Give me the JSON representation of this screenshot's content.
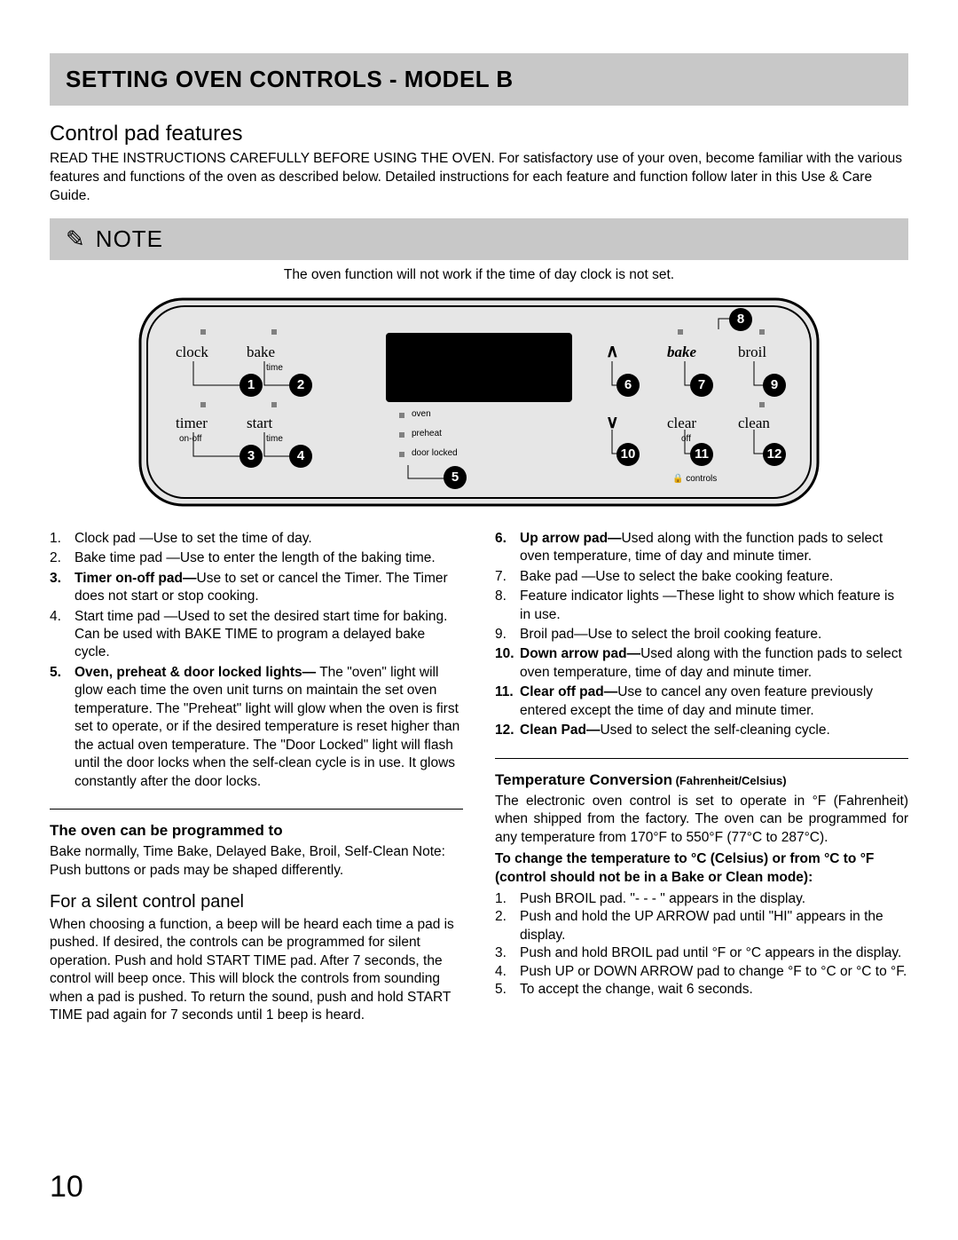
{
  "header": {
    "title": "SETTING OVEN CONTROLS - MODEL B"
  },
  "subhead": "Control pad features",
  "intro": "READ THE INSTRUCTIONS CAREFULLY BEFORE USING THE OVEN.  For satisfactory use of your oven, become familiar with the various features and functions of the oven as described below. Detailed instructions for each feature and function follow later in this Use & Care Guide.",
  "note": {
    "label": "NOTE",
    "text": "The oven function will not work if the time of day clock is not set."
  },
  "panel": {
    "labels": {
      "clock": "clock",
      "bake_top": "bake",
      "time_sub": "time",
      "timer": "timer",
      "start": "start",
      "onoff_sub": "on-off",
      "time_sub2": "time",
      "oven": "oven",
      "preheat": "preheat",
      "doorlocked": "door locked",
      "bake_bold": "bake",
      "broil": "broil",
      "clear": "clear",
      "clean": "clean",
      "off_sub": "off",
      "controls_sub": "controls"
    }
  },
  "features_left": [
    {
      "n": "1.",
      "bold": false,
      "text": "Clock pad —Use to set the time of day."
    },
    {
      "n": "2.",
      "bold": false,
      "text": "Bake time pad  —Use to enter the length of the baking time."
    },
    {
      "n": "3.",
      "bold": true,
      "lead": "Timer on-off pad—",
      "text": "Use to set or cancel the Timer. The Timer does not start or stop cooking."
    },
    {
      "n": "4.",
      "bold": false,
      "text": "Start time pad   —Used to set the desired start time for baking. Can be used with BAKE TIME to program a delayed bake cycle."
    },
    {
      "n": "5.",
      "bold": true,
      "lead": "Oven, preheat & door locked lights—",
      "text": " The \"oven\" light will glow each time the oven unit turns on maintain the set oven temperature. The \"Preheat\" light will glow when the oven is first set to operate, or if the desired temperature is reset higher than the actual oven temperature. The \"Door Locked\" light will flash until the door locks when the self-clean cycle is in use. It glows constantly after the door locks."
    }
  ],
  "features_right": [
    {
      "n": "6.",
      "bold": true,
      "lead": "Up arrow pad—",
      "text": "Used along with the function pads to select oven temperature, time of day and minute timer."
    },
    {
      "n": "7.",
      "bold": false,
      "text": "Bake pad —Use to select the bake cooking feature."
    },
    {
      "n": "8.",
      "bold": false,
      "text": "Feature indicator lights     —These light to show which feature is in use."
    },
    {
      "n": "9.",
      "bold": false,
      "text": "Broil pad—Use to select the broil cooking feature."
    },
    {
      "n": "10.",
      "bold": true,
      "lead": "Down arrow pad—",
      "text": "Used along with the function pads to select oven temperature, time of day and minute timer."
    },
    {
      "n": "11.",
      "bold": true,
      "lead": "Clear off pad—",
      "text": "Use to cancel any oven feature previously entered except the time of day and minute timer."
    },
    {
      "n": "12.",
      "bold": true,
      "lead": "Clean Pad—",
      "text": "Used to select the self-cleaning cycle."
    }
  ],
  "programmed": {
    "heading": "The oven can be programmed to",
    "body": "Bake normally, Time Bake, Delayed Bake, Broil, Self-Clean Note:  Push buttons or pads may be shaped differently."
  },
  "silent": {
    "heading": "For a silent control panel",
    "body": "When choosing a function, a beep will be heard each time a pad is pushed. If desired, the controls can be programmed for silent operation. Push and hold START TIME pad. After 7 seconds, the control will beep once. This will block the controls from sounding when a pad is pushed. To return the sound, push and hold START TIME pad again for 7 seconds until 1 beep is heard."
  },
  "tempconv": {
    "heading": "Temperature Conversion",
    "heading_small": " (Fahrenheit/Celsius)",
    "body": "The electronic oven control is set to operate in °F (Fahrenheit) when shipped from the factory. The oven can be programmed for any temperature from 170°F to 550°F (77°C to 287°C).",
    "bold_intro": "To change the temperature to °C (Celsius) or from °C to °F (control should not be in a Bake or Clean mode):",
    "steps": [
      "Push BROIL  pad. \"- - - \" appears in the display.",
      "Push and hold the UP ARROW pad until \"HI\" appears in the display.",
      "Push and hold BROIL  pad until °F or °C appears in the display.",
      "Push UP or DOWN ARROW  pad to change °F to °C or °C to °F.",
      "To accept the change, wait 6 seconds."
    ]
  },
  "page_number": "10"
}
